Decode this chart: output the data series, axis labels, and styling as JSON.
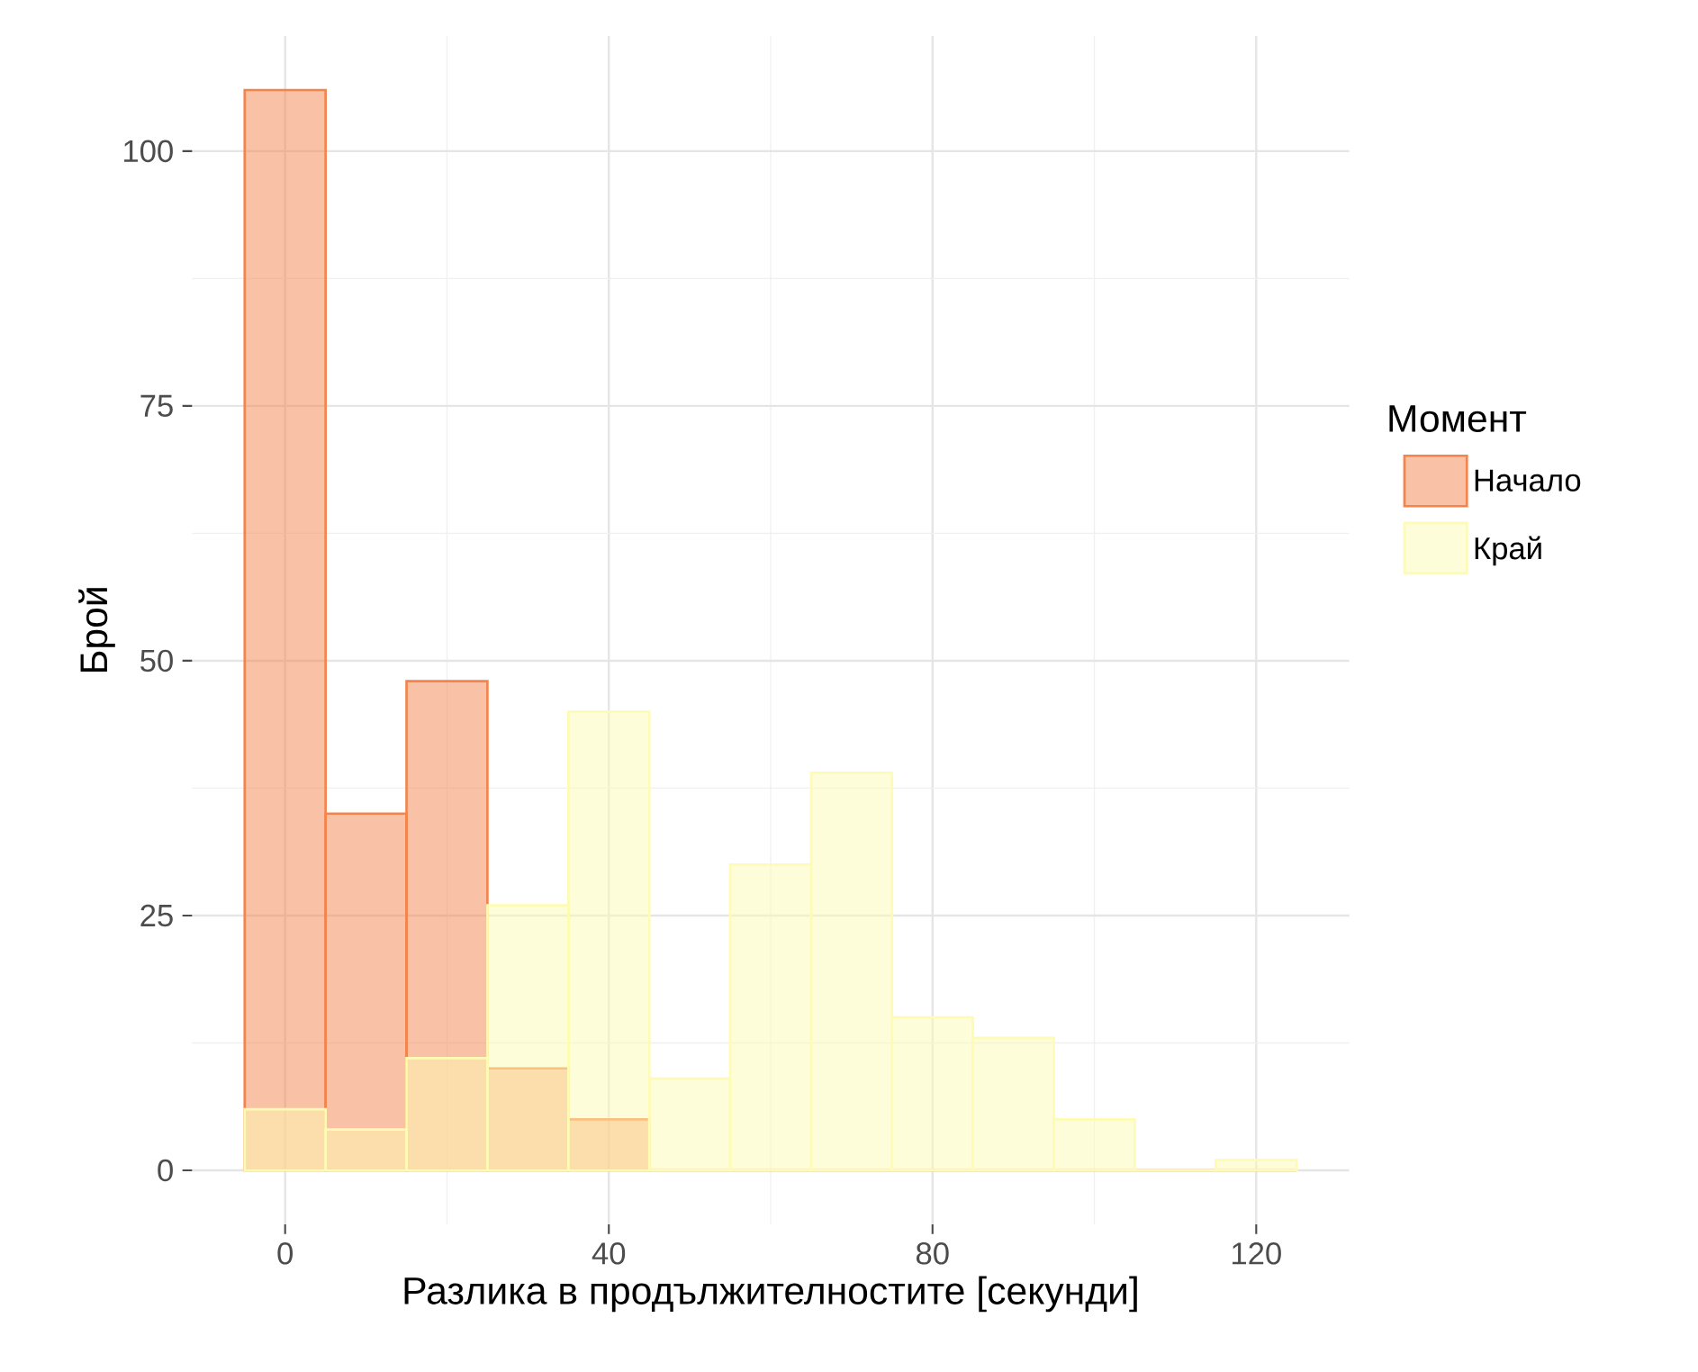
{
  "chart_data": {
    "type": "histogram",
    "xlabel": "Разлика в продължителностите [секунди]",
    "ylabel": "Брой",
    "legend_title": "Момент",
    "bins": [
      -5,
      5,
      15,
      25,
      35,
      45,
      55,
      65,
      75,
      85,
      95,
      105,
      115,
      125
    ],
    "series": [
      {
        "name": "Начало",
        "color": "#f4844c",
        "values": [
          106,
          35,
          48,
          10,
          5,
          0,
          0,
          0,
          0,
          0,
          0,
          0,
          0
        ]
      },
      {
        "name": "Край",
        "color": "#fefbb4",
        "values": [
          6,
          4,
          11,
          26,
          45,
          9,
          30,
          39,
          15,
          13,
          5,
          0,
          1
        ]
      }
    ],
    "xlim": [
      -11.5,
      131.5
    ],
    "ylim": [
      -5.3,
      111.3
    ],
    "xticks": [
      0,
      40,
      80,
      120
    ],
    "yticks": [
      0,
      25,
      50,
      75,
      100
    ],
    "grid": true,
    "legend": "right"
  }
}
